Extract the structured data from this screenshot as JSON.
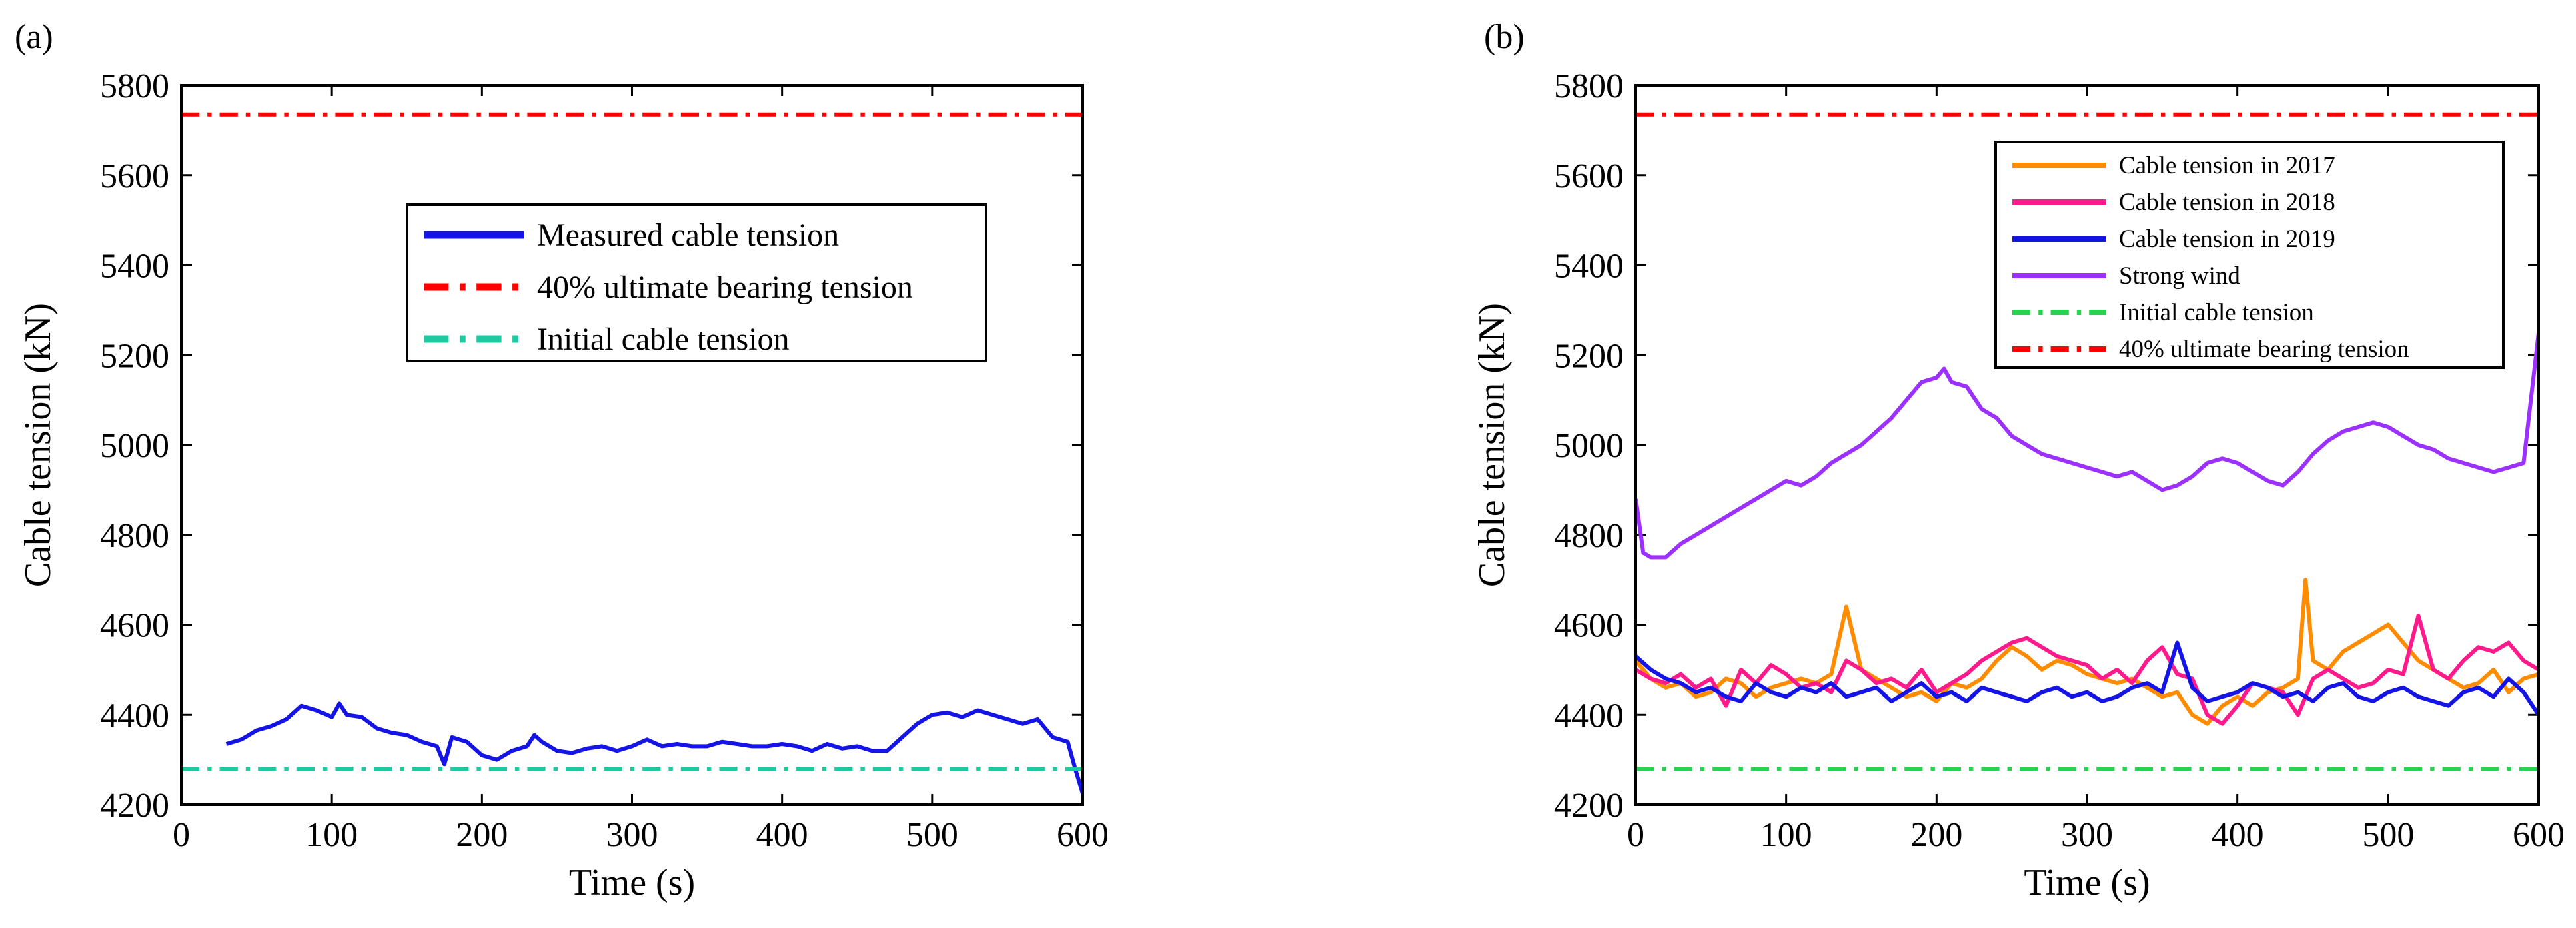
{
  "panels": [
    {
      "label": "(a)"
    },
    {
      "label": "(b)"
    }
  ],
  "chart_data": [
    {
      "type": "line",
      "xlabel": "Time (s)",
      "ylabel": "Cable tension (kN)",
      "xlim": [
        0,
        600
      ],
      "ylim": [
        4200,
        5800
      ],
      "xticks": [
        "0",
        "100",
        "200",
        "300",
        "400",
        "500",
        "600"
      ],
      "yticks": [
        "4200",
        "4400",
        "4600",
        "4800",
        "5000",
        "5200",
        "5400",
        "5600",
        "5800"
      ],
      "grid": false,
      "legend_position": "upper-center",
      "series": [
        {
          "name": "Measured cable tension",
          "color": "#1414e6",
          "style": "solid",
          "x": [
            30,
            40,
            50,
            60,
            70,
            80,
            90,
            100,
            105,
            110,
            120,
            130,
            140,
            150,
            160,
            170,
            175,
            180,
            190,
            200,
            210,
            220,
            230,
            235,
            240,
            250,
            260,
            270,
            280,
            290,
            300,
            310,
            320,
            330,
            340,
            350,
            360,
            370,
            380,
            390,
            400,
            410,
            420,
            430,
            440,
            450,
            460,
            470,
            480,
            490,
            500,
            510,
            520,
            530,
            540,
            550,
            560,
            570,
            580,
            590,
            595,
            600
          ],
          "y": [
            4335,
            4345,
            4365,
            4375,
            4390,
            4420,
            4410,
            4395,
            4425,
            4400,
            4395,
            4370,
            4360,
            4355,
            4340,
            4330,
            4290,
            4350,
            4340,
            4310,
            4300,
            4320,
            4330,
            4355,
            4340,
            4320,
            4315,
            4325,
            4330,
            4320,
            4330,
            4345,
            4330,
            4335,
            4330,
            4330,
            4340,
            4335,
            4330,
            4330,
            4335,
            4330,
            4320,
            4335,
            4325,
            4330,
            4320,
            4320,
            4350,
            4380,
            4400,
            4405,
            4395,
            4410,
            4400,
            4390,
            4380,
            4390,
            4350,
            4340,
            4280,
            4225
          ]
        },
        {
          "name": "40% ultimate bearing tension",
          "color": "#ff0000",
          "style": "dashdot",
          "x": [
            0,
            600
          ],
          "y": [
            5735,
            5735
          ]
        },
        {
          "name": "Initial cable tension",
          "color": "#1ec8a0",
          "style": "dashdot",
          "x": [
            0,
            600
          ],
          "y": [
            4280,
            4280
          ]
        }
      ]
    },
    {
      "type": "line",
      "xlabel": "Time (s)",
      "ylabel": "Cable tension (kN)",
      "xlim": [
        0,
        600
      ],
      "ylim": [
        4200,
        5800
      ],
      "xticks": [
        "0",
        "100",
        "200",
        "300",
        "400",
        "500",
        "600"
      ],
      "yticks": [
        "4200",
        "4400",
        "4600",
        "4800",
        "5000",
        "5200",
        "5400",
        "5600",
        "5800"
      ],
      "grid": false,
      "legend_position": "top-right",
      "series": [
        {
          "name": "Cable tension in 2017",
          "color": "#ff8c00",
          "style": "solid",
          "x": [
            0,
            10,
            20,
            30,
            40,
            50,
            60,
            70,
            80,
            90,
            100,
            110,
            120,
            130,
            140,
            150,
            160,
            170,
            180,
            190,
            200,
            210,
            220,
            230,
            240,
            250,
            260,
            270,
            280,
            290,
            300,
            310,
            320,
            330,
            340,
            350,
            360,
            370,
            380,
            390,
            400,
            410,
            420,
            430,
            440,
            445,
            450,
            460,
            470,
            480,
            490,
            500,
            510,
            520,
            530,
            540,
            550,
            560,
            570,
            580,
            590,
            600
          ],
          "y": [
            4520,
            4480,
            4460,
            4470,
            4440,
            4450,
            4480,
            4470,
            4440,
            4460,
            4470,
            4480,
            4470,
            4490,
            4640,
            4500,
            4480,
            4460,
            4440,
            4450,
            4430,
            4470,
            4460,
            4480,
            4520,
            4550,
            4530,
            4500,
            4520,
            4510,
            4490,
            4480,
            4470,
            4480,
            4460,
            4440,
            4450,
            4400,
            4380,
            4420,
            4440,
            4420,
            4450,
            4460,
            4480,
            4700,
            4520,
            4500,
            4540,
            4560,
            4580,
            4600,
            4560,
            4520,
            4500,
            4480,
            4460,
            4470,
            4500,
            4450,
            4480,
            4490
          ]
        },
        {
          "name": "Cable tension in 2018",
          "color": "#ff1a8c",
          "style": "solid",
          "x": [
            0,
            10,
            20,
            30,
            40,
            50,
            60,
            70,
            80,
            90,
            100,
            110,
            120,
            130,
            140,
            150,
            160,
            170,
            180,
            190,
            200,
            210,
            220,
            230,
            240,
            250,
            260,
            270,
            280,
            290,
            300,
            310,
            320,
            330,
            340,
            350,
            360,
            370,
            380,
            390,
            400,
            410,
            420,
            430,
            440,
            450,
            460,
            470,
            480,
            490,
            500,
            510,
            520,
            530,
            540,
            550,
            560,
            570,
            580,
            590,
            600
          ],
          "y": [
            4500,
            4480,
            4470,
            4490,
            4460,
            4480,
            4420,
            4500,
            4470,
            4510,
            4490,
            4460,
            4470,
            4450,
            4520,
            4500,
            4470,
            4480,
            4460,
            4500,
            4450,
            4470,
            4490,
            4520,
            4540,
            4560,
            4570,
            4550,
            4530,
            4520,
            4510,
            4480,
            4500,
            4470,
            4520,
            4550,
            4490,
            4480,
            4400,
            4380,
            4420,
            4470,
            4460,
            4450,
            4400,
            4480,
            4500,
            4480,
            4460,
            4470,
            4500,
            4490,
            4620,
            4500,
            4480,
            4520,
            4550,
            4540,
            4560,
            4520,
            4500
          ]
        },
        {
          "name": "Cable tension in 2019",
          "color": "#1414e6",
          "style": "solid",
          "x": [
            0,
            10,
            20,
            30,
            40,
            50,
            60,
            70,
            80,
            90,
            100,
            110,
            120,
            130,
            140,
            150,
            160,
            170,
            180,
            190,
            200,
            210,
            220,
            230,
            240,
            250,
            260,
            270,
            280,
            290,
            300,
            310,
            320,
            330,
            340,
            350,
            360,
            370,
            380,
            390,
            400,
            410,
            420,
            430,
            440,
            450,
            460,
            470,
            480,
            490,
            500,
            510,
            520,
            530,
            540,
            550,
            560,
            570,
            580,
            590,
            600
          ],
          "y": [
            4530,
            4500,
            4480,
            4470,
            4450,
            4460,
            4440,
            4430,
            4470,
            4450,
            4440,
            4460,
            4450,
            4470,
            4440,
            4450,
            4460,
            4430,
            4450,
            4470,
            4440,
            4450,
            4430,
            4460,
            4450,
            4440,
            4430,
            4450,
            4460,
            4440,
            4450,
            4430,
            4440,
            4460,
            4470,
            4450,
            4560,
            4460,
            4430,
            4440,
            4450,
            4470,
            4460,
            4440,
            4450,
            4430,
            4460,
            4470,
            4440,
            4430,
            4450,
            4460,
            4440,
            4430,
            4420,
            4450,
            4460,
            4440,
            4480,
            4450,
            4400
          ]
        },
        {
          "name": "Strong wind",
          "color": "#9b30ff",
          "style": "solid",
          "x": [
            0,
            5,
            10,
            20,
            30,
            40,
            50,
            60,
            70,
            80,
            90,
            100,
            110,
            120,
            130,
            140,
            150,
            160,
            170,
            180,
            190,
            200,
            205,
            210,
            220,
            230,
            240,
            250,
            260,
            270,
            280,
            290,
            300,
            310,
            320,
            330,
            340,
            350,
            360,
            370,
            380,
            390,
            400,
            410,
            420,
            430,
            440,
            450,
            460,
            470,
            480,
            490,
            500,
            510,
            520,
            530,
            540,
            550,
            560,
            570,
            580,
            590,
            600
          ],
          "y": [
            4880,
            4760,
            4750,
            4750,
            4780,
            4800,
            4820,
            4840,
            4860,
            4880,
            4900,
            4920,
            4910,
            4930,
            4960,
            4980,
            5000,
            5030,
            5060,
            5100,
            5140,
            5150,
            5170,
            5140,
            5130,
            5080,
            5060,
            5020,
            5000,
            4980,
            4970,
            4960,
            4950,
            4940,
            4930,
            4940,
            4920,
            4900,
            4910,
            4930,
            4960,
            4970,
            4960,
            4940,
            4920,
            4910,
            4940,
            4980,
            5010,
            5030,
            5040,
            5050,
            5040,
            5020,
            5000,
            4990,
            4970,
            4960,
            4950,
            4940,
            4950,
            4960,
            5250
          ]
        },
        {
          "name": "Initial cable tension",
          "color": "#28d250",
          "style": "dashdot",
          "x": [
            0,
            600
          ],
          "y": [
            4280,
            4280
          ]
        },
        {
          "name": "40% ultimate bearing tension",
          "color": "#ff0000",
          "style": "dashdot",
          "x": [
            0,
            600
          ],
          "y": [
            5735,
            5735
          ]
        }
      ]
    }
  ]
}
